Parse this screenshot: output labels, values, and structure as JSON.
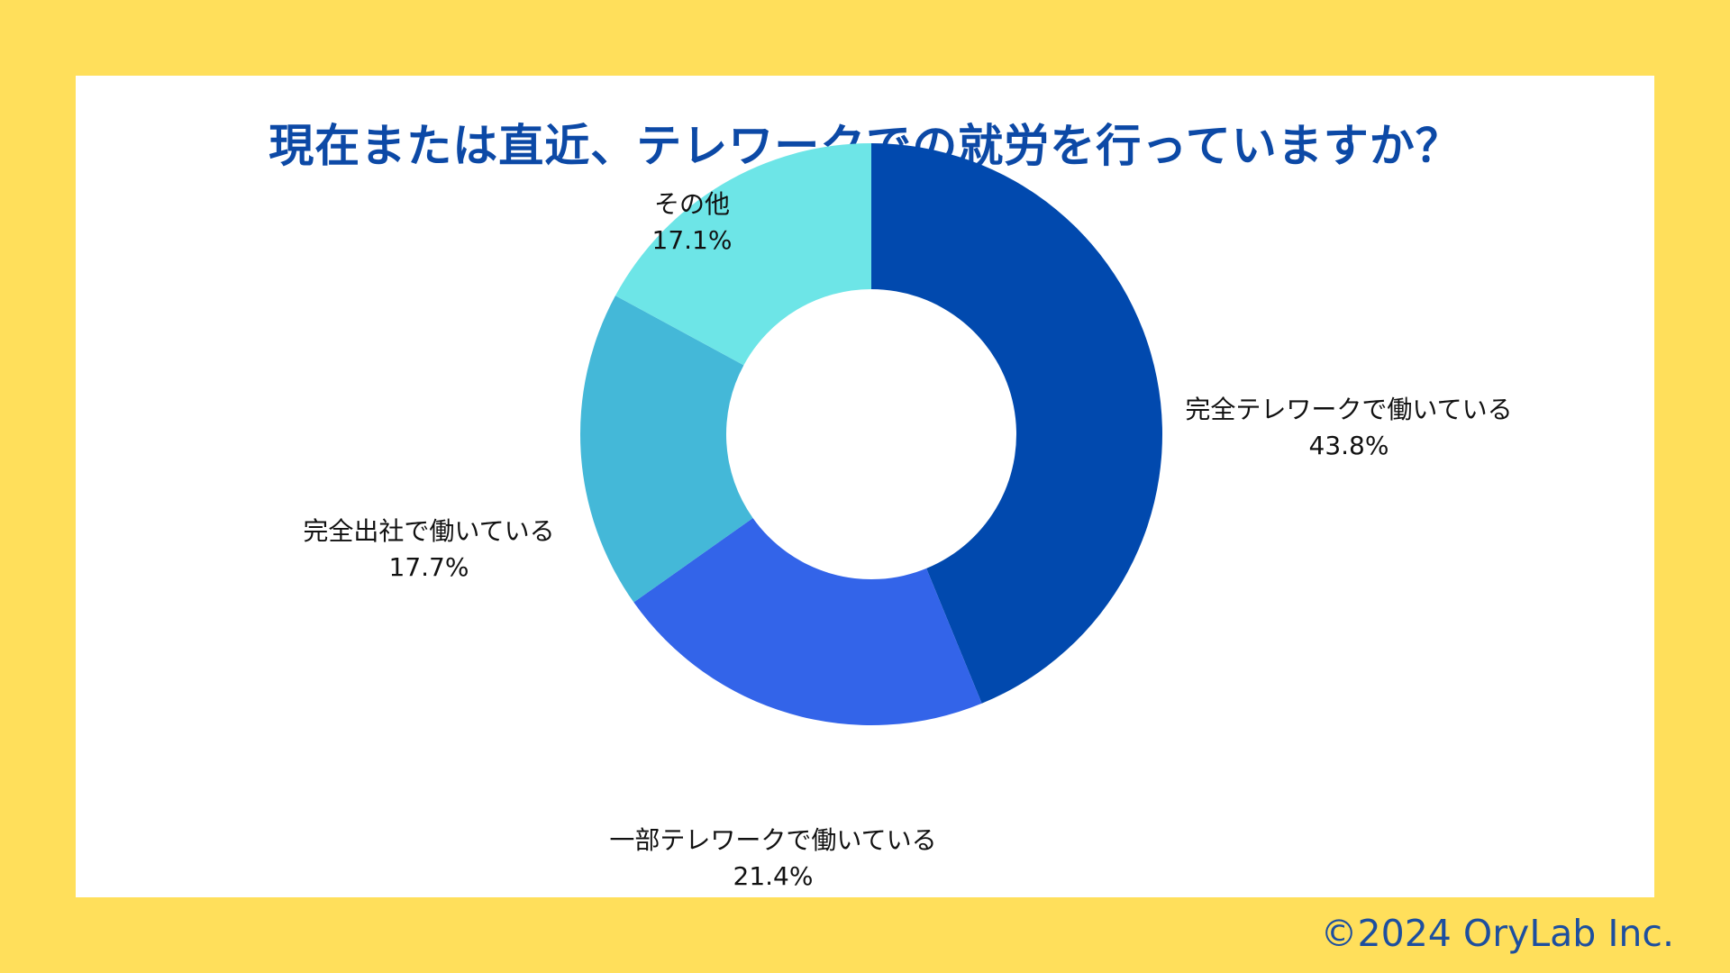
{
  "page": {
    "background_color": "#ffdf5b",
    "panel_color": "#ffffff",
    "copyright": "©2024 OryLab Inc."
  },
  "chart_data": {
    "type": "pie",
    "style": "donut",
    "title": "現在または直近、テレワークでの就労を行っていますか？",
    "title_color": "#0c49a6",
    "label_color": "#111111",
    "slices": [
      {
        "label": "完全テレワークで働いている",
        "value": 43.8,
        "display": "43.8%",
        "color": "#0149ae"
      },
      {
        "label": "一部テレワークで働いている",
        "value": 21.4,
        "display": "21.4%",
        "color": "#3364e9"
      },
      {
        "label": "完全出社で働いている",
        "value": 17.7,
        "display": "17.7%",
        "color": "#44b8d8"
      },
      {
        "label": "その他",
        "value": 17.1,
        "display": "17.1%",
        "color": "#6de5e7"
      }
    ]
  }
}
